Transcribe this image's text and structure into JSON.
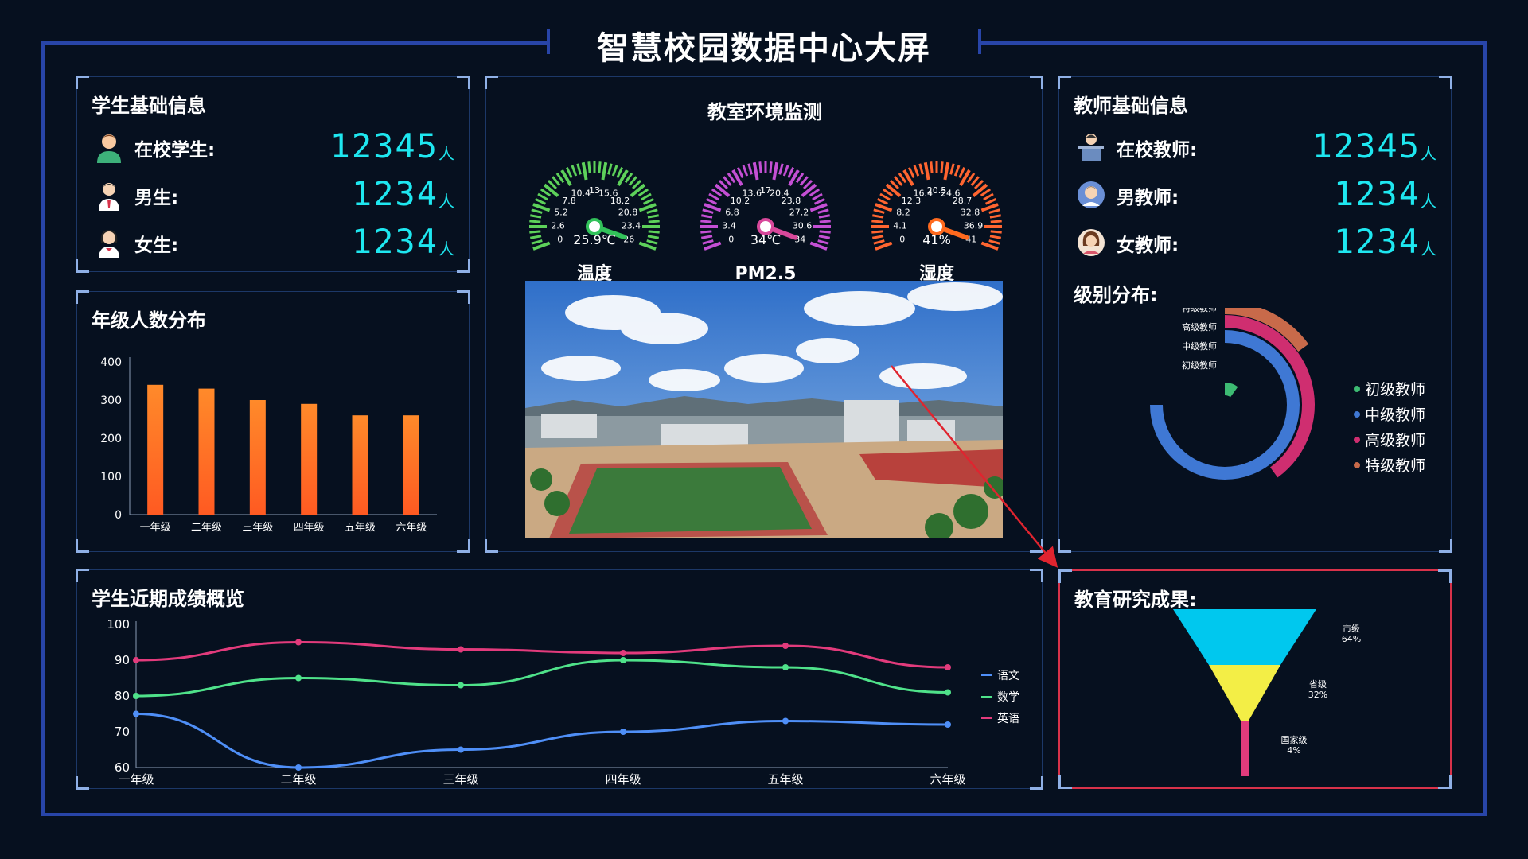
{
  "header": {
    "title": "智慧校园数据中心大屏"
  },
  "student_info": {
    "title": "学生基础信息",
    "unit": "人",
    "rows": [
      {
        "label": "在校学生:",
        "value": "12345"
      },
      {
        "label": "男生:",
        "value": "1234"
      },
      {
        "label": "女生:",
        "value": "1234"
      }
    ]
  },
  "grade_distribution": {
    "title": "年级人数分布",
    "chart_data": {
      "type": "bar",
      "categories": [
        "一年级",
        "二年级",
        "三年级",
        "四年级",
        "五年级",
        "六年级"
      ],
      "values": [
        340,
        330,
        300,
        290,
        260,
        260
      ],
      "ylim": [
        0,
        400
      ],
      "yticks": [
        "0",
        "100",
        "200",
        "300",
        "400"
      ],
      "color": "#ff6d28"
    }
  },
  "environment": {
    "title": "教室环境监测",
    "gauges": [
      {
        "label": "温度",
        "value_text": "25.9℃",
        "value": 25.9,
        "max": 26,
        "ticks": [
          "0",
          "2.6",
          "5.2",
          "7.8",
          "10.4",
          "13",
          "15.6",
          "18.2",
          "20.8",
          "23.4",
          "26"
        ],
        "color": "#5dd15a",
        "needle": "#32c25a"
      },
      {
        "label": "PM2.5",
        "value_text": "34℃",
        "value": 34,
        "max": 34,
        "ticks": [
          "0",
          "3.4",
          "6.8",
          "10.2",
          "13.6",
          "17",
          "20.4",
          "23.8",
          "27.2",
          "30.6",
          "34"
        ],
        "color": "#c44fd4",
        "needle": "#d8489b"
      },
      {
        "label": "湿度",
        "value_text": "41%",
        "value": 41,
        "max": 41,
        "ticks": [
          "0",
          "4.1",
          "8.2",
          "12.3",
          "16.4",
          "20.5",
          "24.6",
          "28.7",
          "32.8",
          "36.9",
          "41"
        ],
        "color": "#ff6530",
        "needle": "#ff6a1e"
      }
    ]
  },
  "teacher_info": {
    "title": "教师基础信息",
    "unit": "人",
    "rows": [
      {
        "label": "在校教师:",
        "value": "12345"
      },
      {
        "label": "男教师:",
        "value": "1234"
      },
      {
        "label": "女教师:",
        "value": "1234"
      }
    ]
  },
  "level_distribution": {
    "title": "级别分布:",
    "chart_data": {
      "type": "pie",
      "variant": "concentric-arcs",
      "series": [
        {
          "name": "初级教师",
          "value": 10,
          "color": "#3dbb73"
        },
        {
          "name": "中级教师",
          "value": 75,
          "color": "#3f78d4"
        },
        {
          "name": "高级教师",
          "value": 40,
          "color": "#cf2e70"
        },
        {
          "name": "特级教师",
          "value": 15,
          "color": "#c86a4a"
        }
      ],
      "arc_labels_order": [
        "特级教师",
        "高级教师",
        "中级教师",
        "初级教师"
      ],
      "legend_position": "right"
    }
  },
  "scores": {
    "title": "学生近期成绩概览",
    "chart_data": {
      "type": "line",
      "x": [
        "一年级",
        "二年级",
        "三年级",
        "四年级",
        "五年级",
        "六年级"
      ],
      "ylim": [
        60,
        100
      ],
      "yticks": [
        "60",
        "70",
        "80",
        "90",
        "100"
      ],
      "legend_position": "right",
      "series": [
        {
          "name": "语文",
          "values": [
            75,
            60,
            65,
            70,
            73,
            72
          ],
          "color": "#4f8ff7"
        },
        {
          "name": "数学",
          "values": [
            80,
            85,
            83,
            90,
            88,
            81
          ],
          "color": "#4fe28a"
        },
        {
          "name": "英语",
          "values": [
            90,
            95,
            93,
            92,
            94,
            88
          ],
          "color": "#e23b7c"
        }
      ]
    }
  },
  "research": {
    "title": "教育研究成果:",
    "chart_data": {
      "type": "funnel",
      "series": [
        {
          "name": "市级",
          "percent_text": "64%",
          "value": 64,
          "color": "#00c8ee"
        },
        {
          "name": "省级",
          "percent_text": "32%",
          "value": 32,
          "color": "#f3ee46"
        },
        {
          "name": "国家级",
          "percent_text": "4%",
          "value": 4,
          "color": "#e23b7c"
        }
      ]
    }
  }
}
